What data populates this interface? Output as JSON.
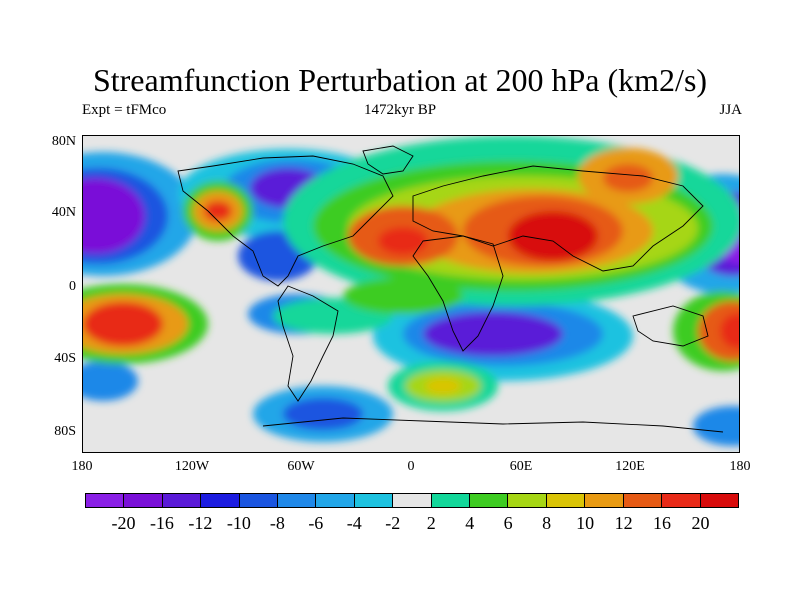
{
  "title": "Streamfunction Perturbation at 200 hPa (km2/s)",
  "subtitle_left": "Expt = tFMco",
  "subtitle_center": "1472kyr BP",
  "subtitle_right": "JJA",
  "lat_labels": [
    "80N",
    "40N",
    "0",
    "40S",
    "80S"
  ],
  "lon_labels": [
    "180",
    "120W",
    "60W",
    "0",
    "60E",
    "120E",
    "180"
  ],
  "colorbar": {
    "labels": [
      "-20",
      "-16",
      "-12",
      "-10",
      "-8",
      "-6",
      "-4",
      "-2",
      "2",
      "4",
      "6",
      "8",
      "10",
      "12",
      "16",
      "20"
    ],
    "colors": [
      "#8a1fe6",
      "#7a10d8",
      "#5a1ad8",
      "#1c1ce0",
      "#1a55e0",
      "#1f88e8",
      "#22a6e8",
      "#1ec2e0",
      "#e6e6e6",
      "#12d79a",
      "#3ecc22",
      "#a6d614",
      "#dac406",
      "#e89a12",
      "#e65a14",
      "#e82a18",
      "#d80b0b"
    ]
  }
}
